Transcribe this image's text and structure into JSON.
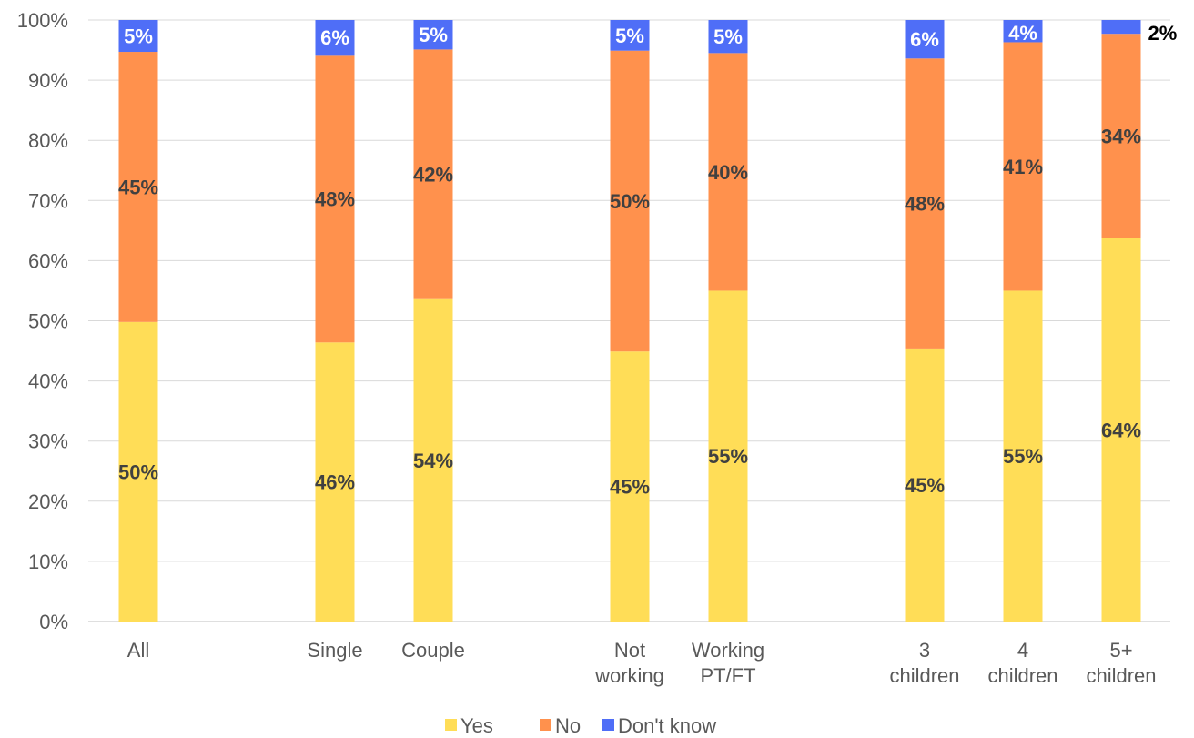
{
  "chart_data": {
    "type": "bar",
    "stacked": true,
    "title": "",
    "xlabel": "",
    "ylabel": "",
    "ylim": [
      0,
      100
    ],
    "y_ticks": [
      "0%",
      "10%",
      "20%",
      "30%",
      "40%",
      "50%",
      "60%",
      "70%",
      "80%",
      "90%",
      "100%"
    ],
    "grid": true,
    "legend_position": "bottom",
    "categories": [
      [
        "All"
      ],
      [
        "Single"
      ],
      [
        "Couple"
      ],
      [
        "Not",
        "working"
      ],
      [
        "Working",
        "PT/FT"
      ],
      [
        "3",
        "children"
      ],
      [
        "4",
        "children"
      ],
      [
        "5+",
        "children"
      ]
    ],
    "series": [
      {
        "name": "Yes",
        "color": "#FFDD57",
        "values": [
          49.8,
          46.4,
          53.6,
          44.9,
          55.0,
          45.4,
          55.0,
          63.7
        ],
        "labels": [
          "50%",
          "46%",
          "54%",
          "45%",
          "55%",
          "45%",
          "55%",
          "64%"
        ]
      },
      {
        "name": "No",
        "color": "#FF914D",
        "values": [
          44.9,
          47.8,
          41.5,
          50.0,
          39.5,
          48.2,
          41.3,
          34.0
        ],
        "labels": [
          "45%",
          "48%",
          "42%",
          "50%",
          "40%",
          "48%",
          "41%",
          "34%"
        ]
      },
      {
        "name": "Don't know",
        "color": "#4F6EF7",
        "values": [
          5.3,
          5.8,
          4.9,
          5.1,
          5.5,
          6.4,
          3.7,
          2.3
        ],
        "labels": [
          "5%",
          "6%",
          "5%",
          "5%",
          "5%",
          "6%",
          "4%",
          "2%"
        ]
      }
    ]
  }
}
